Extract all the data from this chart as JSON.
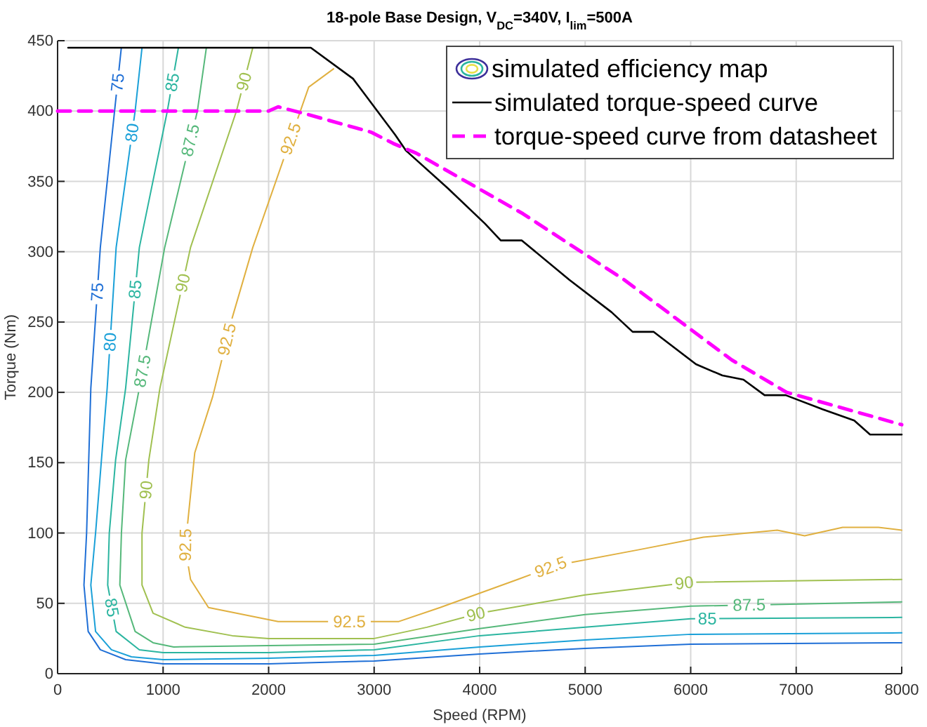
{
  "chart_data": {
    "type": "line",
    "title": "18-pole Base Design, V$_{DC}$=340V, I$_{lim}$=500A",
    "xlabel": "Speed (RPM)",
    "ylabel": "Torque (Nm)",
    "xlim": [
      0,
      8000
    ],
    "xticks": [
      0,
      1000,
      2000,
      3000,
      4000,
      5000,
      6000,
      7000,
      8000
    ],
    "ylim": [
      0,
      450
    ],
    "yticks": [
      0,
      50,
      100,
      150,
      200,
      250,
      300,
      350,
      400,
      450
    ],
    "grid": true,
    "legend": "top right",
    "series": [
      {
        "name": "75",
        "color": "#1f6fd6",
        "x": [
          604,
          540,
          405,
          315,
          275,
          250,
          290,
          405,
          645,
          1000,
          2000,
          3000,
          4000,
          5000,
          6000,
          8000
        ],
        "values": [
          445,
          400,
          303,
          203,
          100,
          63,
          30,
          17,
          10,
          7,
          7,
          9,
          14,
          18,
          21,
          22
        ]
      },
      {
        "name": "80",
        "color": "#1aa0d8",
        "x": [
          800,
          735,
          555,
          470,
          360,
          315,
          360,
          510,
          700,
          1000,
          2000,
          3000,
          4000,
          5000,
          6000,
          8000
        ],
        "values": [
          445,
          400,
          303,
          203,
          100,
          63,
          30,
          17,
          12,
          10,
          11,
          13,
          19,
          24,
          28,
          29
        ]
      },
      {
        "name": "85",
        "color": "#2bb5a0",
        "x": [
          1145,
          1040,
          775,
          645,
          550,
          490,
          475,
          555,
          775,
          1000,
          2000,
          3000,
          4000,
          5000,
          6000,
          8000
        ],
        "values": [
          445,
          400,
          303,
          203,
          152,
          100,
          63,
          30,
          17,
          15,
          15,
          17,
          27,
          33,
          39,
          40
        ]
      },
      {
        "name": "87.5",
        "color": "#55b87a",
        "x": [
          1410,
          1325,
          1015,
          775,
          645,
          605,
          590,
          735,
          905,
          1100,
          2000,
          3000,
          4000,
          5000,
          6000,
          8000
        ],
        "values": [
          445,
          400,
          303,
          203,
          152,
          100,
          63,
          30,
          22,
          19,
          20,
          21,
          32,
          42,
          48,
          51
        ]
      },
      {
        "name": "90",
        "color": "#a0c050",
        "x": [
          1850,
          1695,
          1260,
          970,
          865,
          800,
          800,
          905,
          1210,
          1655,
          2000,
          3000,
          3500,
          4000,
          5000,
          6000,
          8000
        ],
        "values": [
          445,
          400,
          303,
          203,
          152,
          100,
          63,
          43,
          33,
          27,
          25,
          25,
          33,
          43,
          56,
          65,
          67
        ]
      },
      {
        "name": "92.5",
        "color": "#e0b040",
        "x": [
          2615,
          2380,
          1850,
          1655,
          1470,
          1300,
          1210,
          1260,
          1430,
          2090,
          3230,
          3625,
          4360,
          4720,
          5500,
          6120,
          6820,
          7080,
          7440,
          7780,
          8000
        ],
        "values": [
          430,
          417,
          303,
          253,
          197,
          157,
          90,
          67,
          47,
          37,
          37,
          47,
          67,
          77,
          88,
          97,
          102,
          98,
          104,
          104,
          102
        ]
      },
      {
        "name": "simulated torque-speed curve",
        "color": "#000000",
        "line_style": "solid",
        "x": [
          100,
          2400,
          2800,
          3200,
          3300,
          3700,
          4050,
          4200,
          4400,
          4850,
          5250,
          5450,
          5650,
          6050,
          6300,
          6500,
          6700,
          6900,
          7250,
          7550,
          7700,
          8000
        ],
        "values": [
          445,
          445,
          423,
          383,
          372,
          345,
          320,
          308,
          308,
          280,
          257,
          243,
          243,
          220,
          212,
          209,
          198,
          198,
          188,
          180,
          170,
          170
        ]
      },
      {
        "name": "torque-speed curve from datasheet",
        "color": "#ff00ff",
        "line_style": "dashed",
        "x": [
          0,
          2000,
          2090,
          2350,
          2970,
          3180,
          3400,
          4410,
          5370,
          6390,
          6910,
          8000
        ],
        "values": [
          400,
          400,
          403,
          398,
          385,
          377,
          370,
          327,
          280,
          223,
          200,
          177
        ]
      }
    ],
    "annotations": [
      "simulated efficiency map"
    ]
  }
}
